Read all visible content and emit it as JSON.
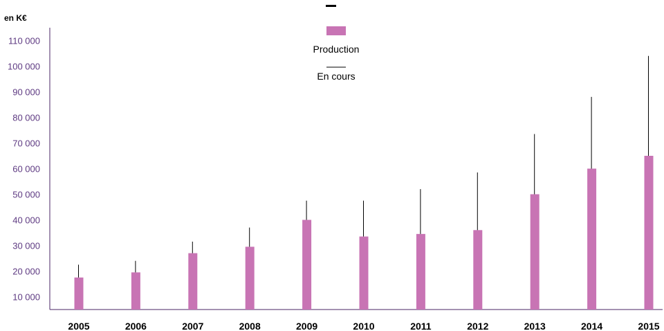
{
  "chart_data": {
    "type": "bar",
    "unit_label": "en K€",
    "categories": [
      "2005",
      "2006",
      "2007",
      "2008",
      "2009",
      "2010",
      "2011",
      "2012",
      "2013",
      "2014",
      "2015"
    ],
    "series": [
      {
        "name": "Production",
        "kind": "bar",
        "values": [
          17500,
          19500,
          27000,
          29500,
          40000,
          33500,
          34500,
          36000,
          50000,
          60000,
          65000
        ]
      },
      {
        "name": "En cours",
        "kind": "line",
        "values": [
          22500,
          24000,
          31500,
          37000,
          47500,
          47500,
          52000,
          58500,
          73500,
          88000,
          104000
        ]
      }
    ],
    "y_ticks": [
      "10 000",
      "20 000",
      "30 000",
      "40 000",
      "50 000",
      "60 000",
      "70 000",
      "80 000",
      "90 000",
      "100 000",
      "110 000"
    ],
    "ylim": [
      5000,
      115000
    ],
    "grid": false,
    "legend_position": "top-center",
    "colors": {
      "bar": "#c874b4",
      "line": "#000000",
      "axis": "#4a2566",
      "y_tick_text": "#5e3a82"
    }
  }
}
